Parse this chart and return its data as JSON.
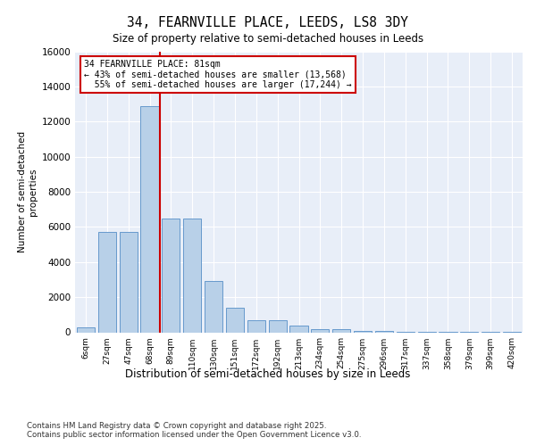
{
  "title1": "34, FEARNVILLE PLACE, LEEDS, LS8 3DY",
  "title2": "Size of property relative to semi-detached houses in Leeds",
  "xlabel": "Distribution of semi-detached houses by size in Leeds",
  "ylabel": "Number of semi-detached\nproperties",
  "property_size": 81,
  "pct_smaller": 43,
  "pct_larger": 55,
  "count_smaller": 13568,
  "count_larger": 17244,
  "bin_labels": [
    "6sqm",
    "27sqm",
    "47sqm",
    "68sqm",
    "89sqm",
    "110sqm",
    "130sqm",
    "151sqm",
    "172sqm",
    "192sqm",
    "213sqm",
    "234sqm",
    "254sqm",
    "275sqm",
    "296sqm",
    "317sqm",
    "337sqm",
    "358sqm",
    "379sqm",
    "399sqm",
    "420sqm"
  ],
  "bar_values": [
    300,
    5700,
    5700,
    12900,
    6500,
    6500,
    2900,
    1400,
    700,
    700,
    400,
    200,
    200,
    100,
    80,
    50,
    30,
    20,
    10,
    5,
    5
  ],
  "bar_color": "#b8d0e8",
  "bar_edgecolor": "#6699cc",
  "vline_color": "#cc0000",
  "bg_color": "#e8eef8",
  "footer1": "Contains HM Land Registry data © Crown copyright and database right 2025.",
  "footer2": "Contains public sector information licensed under the Open Government Licence v3.0.",
  "ylim": [
    0,
    16000
  ],
  "yticks": [
    0,
    2000,
    4000,
    6000,
    8000,
    10000,
    12000,
    14000,
    16000
  ]
}
